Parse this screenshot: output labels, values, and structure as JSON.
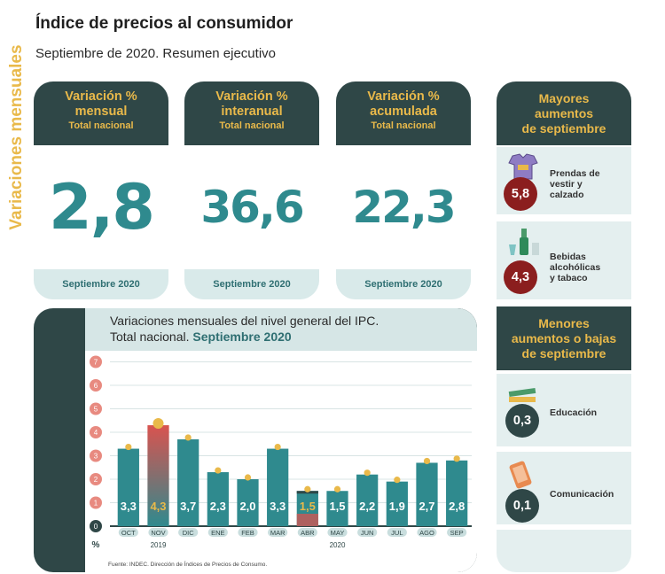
{
  "header": {
    "title": "Índice de precios al consumidor",
    "subtitle": "Septiembre de 2020. Resumen ejecutivo"
  },
  "cards": [
    {
      "line1": "Variación %",
      "line2": "mensual",
      "sub": "Total nacional",
      "value": "2,8",
      "footer": "Septiembre 2020"
    },
    {
      "line1": "Variación %",
      "line2": "interanual",
      "sub": "Total nacional",
      "value": "36,6",
      "footer": "Septiembre 2020"
    },
    {
      "line1": "Variación %",
      "line2": "acumulada",
      "sub": "Total nacional",
      "value": "22,3",
      "footer": "Septiembre 2020"
    }
  ],
  "mayores": {
    "title1": "Mayores",
    "title2": "aumentos",
    "title3": "de septiembre",
    "items": [
      {
        "value": "5,8",
        "label1": "Prendas de",
        "label2": "vestir y",
        "label3": "calzado",
        "icon": "clothing-icon"
      },
      {
        "value": "4,3",
        "label1": "Bebidas",
        "label2": "alcohólicas",
        "label3": "y tabaco",
        "icon": "drinks-icon"
      }
    ]
  },
  "menores": {
    "title1": "Menores",
    "title2": "aumentos o bajas",
    "title3": "de septiembre",
    "items": [
      {
        "value": "0,3",
        "label": "Educación",
        "icon": "books-icon"
      },
      {
        "value": "0,1",
        "label": "Comunicación",
        "icon": "phone-icon"
      }
    ]
  },
  "chart_panel": {
    "side_label": "Variaciones mensuales",
    "title_line1": "Variaciones mensuales del nivel general del IPC.",
    "title_line2_plain": "Total nacional. ",
    "title_line2_bold": "Septiembre 2020",
    "source": "Fuente: INDEC. Dirección de Índices de Precios de Consumo.",
    "unit": "%",
    "year_labels": [
      "2019",
      "2020"
    ]
  },
  "chart_data": {
    "type": "bar",
    "title": "Variaciones mensuales del nivel general del IPC. Total nacional. Septiembre 2020",
    "categories": [
      "OCT",
      "NOV",
      "DIC",
      "ENE",
      "FEB",
      "MAR",
      "ABR",
      "MAY",
      "JUN",
      "JUL",
      "AGO",
      "SEP"
    ],
    "values": [
      3.3,
      4.3,
      3.7,
      2.3,
      2.0,
      3.3,
      1.5,
      1.5,
      2.2,
      1.9,
      2.7,
      2.8
    ],
    "value_labels": [
      "3,3",
      "4,3",
      "3,7",
      "2,3",
      "2,0",
      "3,3",
      "1,5",
      "1,5",
      "2,2",
      "1,9",
      "2,7",
      "2,8"
    ],
    "yticks": [
      0,
      1,
      2,
      3,
      4,
      5,
      6,
      7
    ],
    "ylim": [
      0,
      7
    ],
    "ylabel": "%",
    "grid": true,
    "highlight": {
      "max_category": "NOV",
      "min_category": "ABR"
    },
    "colors": {
      "bar": "#2f8a8e",
      "bar_max_top": "#d9534f",
      "bar_max_bottom": "#2f8a8e",
      "dot": "#e9b94a",
      "tick_circle": "#e88a80",
      "label_max_min": "#e9b94a",
      "label_default": "#ffffff"
    }
  },
  "colors": {
    "dark": "#2f4747",
    "accent": "#e9b94a",
    "teal": "#2f8a8e",
    "light": "#e4efef",
    "maroon": "#8b1e1e",
    "darkteal": "#2f4747"
  }
}
